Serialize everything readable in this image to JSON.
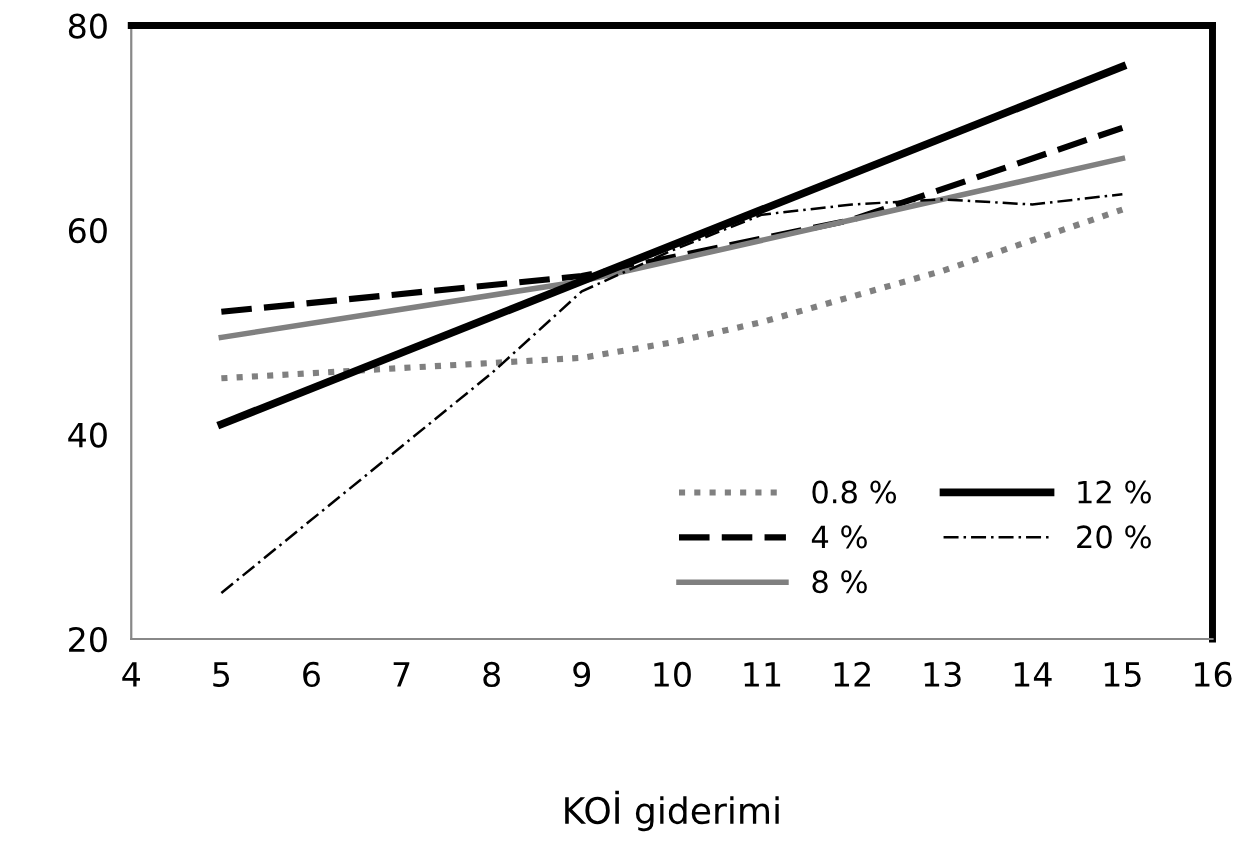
{
  "chart_data": {
    "type": "line",
    "xlabel": "KOİ giderimi",
    "xlim": [
      4,
      16
    ],
    "xticks": [
      4,
      5,
      6,
      7,
      8,
      9,
      10,
      11,
      12,
      13,
      14,
      15,
      16
    ],
    "ylim": [
      20,
      80
    ],
    "yticks": [
      20,
      40,
      60,
      80
    ],
    "grid": false,
    "legend": "bottom right",
    "series": [
      {
        "name": "0.8 %",
        "color": "#808080",
        "line_style": "dotted",
        "x": [
          5,
          6,
          7,
          8,
          9,
          10,
          11,
          12,
          13,
          14,
          15
        ],
        "values": [
          45.5,
          46,
          46.5,
          47,
          47.5,
          49,
          51,
          53.5,
          56,
          59,
          62
        ]
      },
      {
        "name": "4 %",
        "color": "#000000",
        "line_style": "dashed",
        "x": [
          5,
          9,
          12,
          15
        ],
        "values": [
          52,
          55.5,
          61,
          70
        ]
      },
      {
        "name": "8 %",
        "color": "#808080",
        "line_style": "solid",
        "x": [
          5,
          9,
          12,
          15
        ],
        "values": [
          49.5,
          55,
          61,
          67
        ]
      },
      {
        "name": "12 %",
        "color": "#000000",
        "line_style": "solid",
        "x": [
          5,
          15
        ],
        "values": [
          41,
          76
        ]
      },
      {
        "name": "20 %",
        "color": "#000000",
        "line_style": "dashdot",
        "x": [
          5,
          8,
          9,
          10,
          11,
          12,
          13,
          14,
          15
        ],
        "values": [
          24.5,
          46,
          54,
          58,
          61.5,
          62.5,
          63,
          62.5,
          63.5
        ]
      }
    ]
  }
}
